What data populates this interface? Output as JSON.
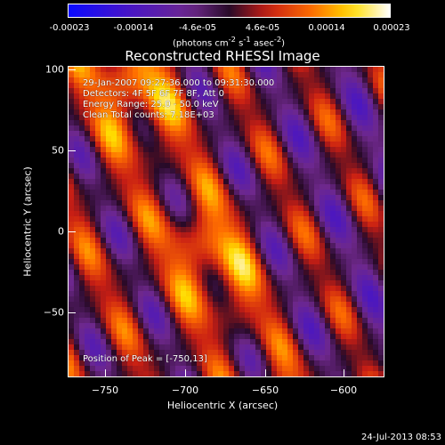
{
  "colorbar": {
    "ticks": [
      "-0.00023",
      "-0.00014",
      "-4.6e-05",
      "4.6e-05",
      "0.00014",
      "0.00023"
    ],
    "units_prefix": "(photons cm",
    "units_sup1": "-2",
    "units_mid": " s",
    "units_sup2": "-1",
    "units_mid2": " asec",
    "units_sup3": "-2",
    "units_suffix": ")",
    "range": [
      -0.00023,
      0.00023
    ]
  },
  "plot": {
    "title": "Reconstructed RHESSI Image",
    "info_lines": [
      "29-Jan-2007 09:27:36.000 to 09:31:30.000",
      "Detectors: 4F 5F 6F 7F 8F, Att 0",
      "Energy Range: 25.0 - 50.0 keV",
      "Clean     Total counts: 7.18E+03"
    ],
    "peak_text": "Position of Peak = [-750,13]",
    "x_ticks": [
      "−750",
      "−700",
      "−650",
      "−600"
    ],
    "y_ticks": [
      "100",
      "50",
      "0",
      "−50"
    ],
    "xlabel": "Heliocentric X (arcsec)",
    "ylabel": "Heliocentric Y (arcsec)",
    "x_range": [
      -773,
      -583
    ],
    "y_range": [
      -92,
      100
    ]
  },
  "footer": {
    "timestamp": "24-Jul-2013 08:53"
  }
}
